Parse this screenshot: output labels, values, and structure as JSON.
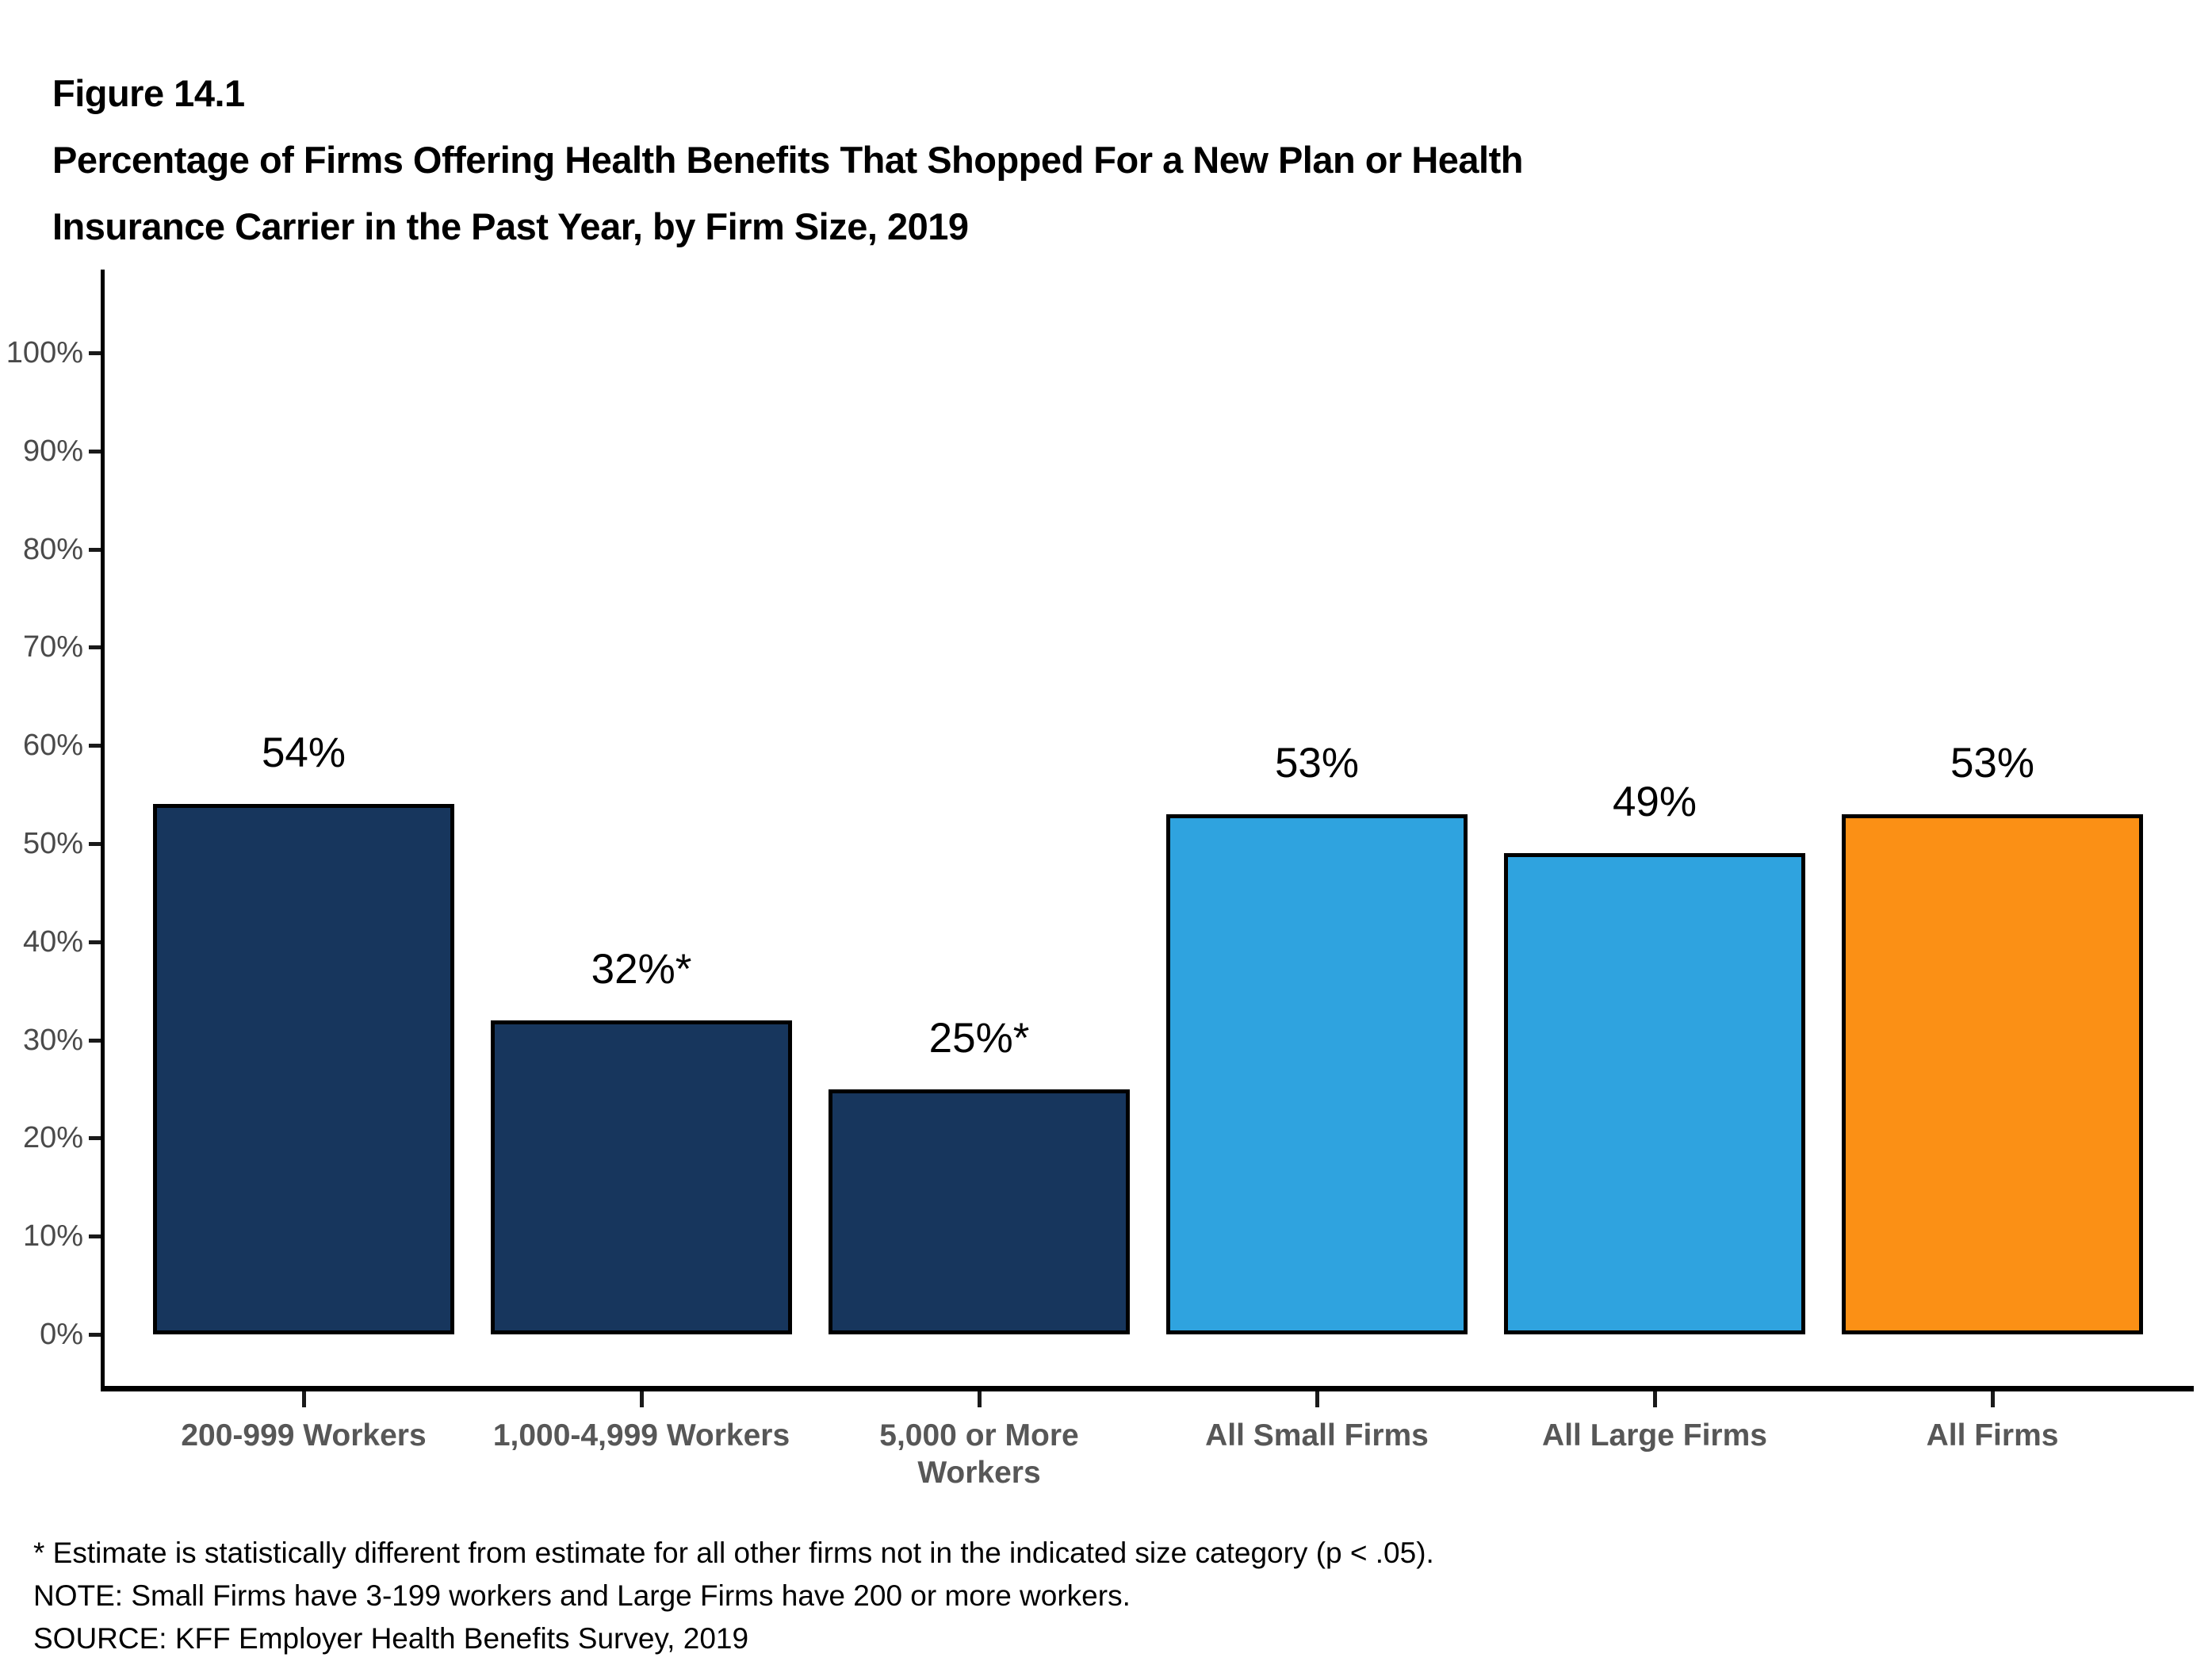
{
  "figure": {
    "label": "Figure 14.1",
    "title_line1": "Percentage of Firms Offering Health Benefits That Shopped For a New Plan or Health",
    "title_line2": "Insurance Carrier in the Past Year, by Firm Size, 2019"
  },
  "chart_data": {
    "type": "bar",
    "title": "Percentage of Firms Offering Health Benefits That Shopped For a New Plan or Health Insurance Carrier in the Past Year, by Firm Size, 2019",
    "categories": [
      "200-999 Workers",
      "1,000-4,999 Workers",
      "5,000 or More Workers",
      "All Small Firms",
      "All Large Firms",
      "All Firms"
    ],
    "categories_lines": [
      [
        "200-999 Workers"
      ],
      [
        "1,000-4,999 Workers"
      ],
      [
        "5,000 or More",
        "Workers"
      ],
      [
        "All Small Firms"
      ],
      [
        "All Large Firms"
      ],
      [
        "All Firms"
      ]
    ],
    "values": [
      54,
      32,
      25,
      53,
      49,
      53
    ],
    "bar_labels": [
      "54%",
      "32%*",
      "25%*",
      "53%",
      "49%",
      "53%"
    ],
    "bar_colors": [
      "#17365D",
      "#17365D",
      "#17365D",
      "#2FA3DF",
      "#2FA3DF",
      "#FB9015"
    ],
    "xlabel": "",
    "ylabel": "",
    "ylim": [
      0,
      100
    ],
    "ytick_labels": [
      "0%",
      "10%",
      "20%",
      "30%",
      "40%",
      "50%",
      "60%",
      "70%",
      "80%",
      "90%",
      "100%"
    ],
    "grid": false,
    "legend": false
  },
  "colors": {
    "navy": "#17365D",
    "light_blue": "#2FA3DF",
    "orange": "#FB9015",
    "axis_line": "#000000",
    "ytick_label_gray": "#4a4a4a",
    "xtick_label_gray": "#575757"
  },
  "footnotes": [
    "* Estimate is statistically different from estimate for all other firms not in the indicated size category (p < .05).",
    "NOTE: Small Firms have 3-199 workers and Large Firms have 200 or more workers.",
    "SOURCE: KFF Employer Health Benefits Survey, 2019"
  ]
}
